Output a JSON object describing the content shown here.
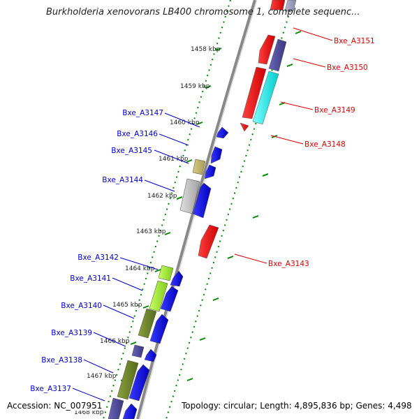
{
  "title": "Burkholderia xenovorans LB400 chromosome 1, complete sequenc...",
  "footer": {
    "accession": "Accession: NC_007951",
    "summary": "Topology: circular; Length: 4,895,836 bp; Genes: 4,498"
  },
  "colors": {
    "forward_label": "#dd0000",
    "reverse_label": "#0000cc",
    "tick": "#008800",
    "backbone": "#888888"
  },
  "ticks": [
    "1458 kbp",
    "1459 kbp",
    "1460 kbp",
    "1461 kbp",
    "1462 kbp",
    "1463 kbp",
    "1464 kbp",
    "1465 kbp",
    "1466 kbp",
    "1467 kbp",
    "1468 kbp"
  ],
  "genes_forward": [
    "Bxe_A3151",
    "Bxe_A3150",
    "Bxe_A3149",
    "Bxe_A3148",
    "Bxe_A3143"
  ],
  "genes_reverse": [
    "Bxe_A3147",
    "Bxe_A3146",
    "Bxe_A3145",
    "Bxe_A3144",
    "Bxe_A3142",
    "Bxe_A3141",
    "Bxe_A3140",
    "Bxe_A3139",
    "Bxe_A3138",
    "Bxe_A3137"
  ]
}
